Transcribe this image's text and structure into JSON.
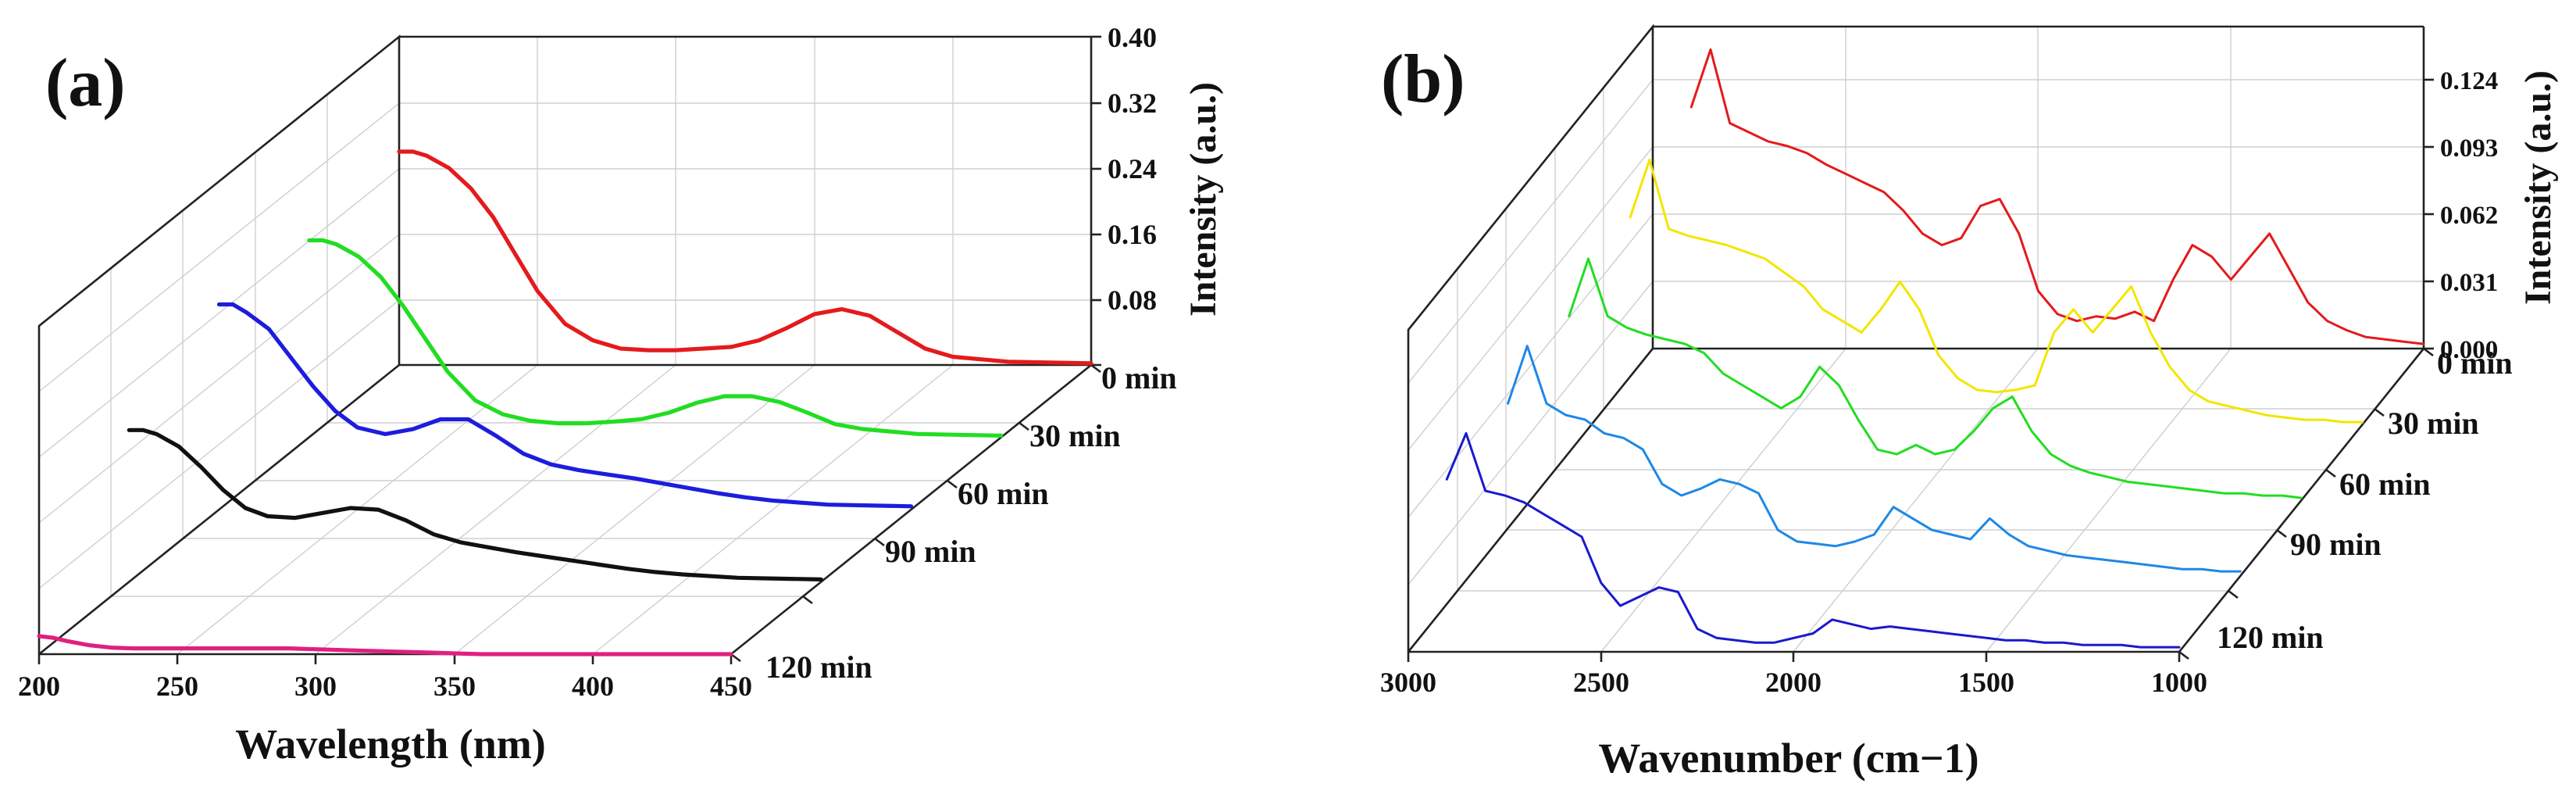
{
  "chart_data": [
    {
      "panel": "(a)",
      "type": "line",
      "subtype": "3d-waterfall",
      "title": "",
      "xlabel": "Wavelength (nm)",
      "ylabel": "Intensity (a.u.)",
      "xlim": [
        200,
        450
      ],
      "ylim": [
        0,
        0.4
      ],
      "x_ticks": [
        "200",
        "250",
        "300",
        "350",
        "400",
        "450"
      ],
      "y_ticks": [
        "0.40",
        "0.32",
        "0.24",
        "0.16",
        "0.08"
      ],
      "depth_labels": [
        "0 min",
        "30 min",
        "60 min",
        "90 min",
        "120 min"
      ],
      "series": [
        {
          "name": "0 min",
          "color": "#e41a1c",
          "x": [
            200,
            205,
            210,
            218,
            226,
            234,
            242,
            250,
            260,
            270,
            280,
            290,
            300,
            310,
            320,
            330,
            340,
            350,
            360,
            370,
            380,
            390,
            400,
            420,
            450
          ],
          "values": [
            0.26,
            0.26,
            0.255,
            0.24,
            0.215,
            0.18,
            0.135,
            0.09,
            0.05,
            0.03,
            0.02,
            0.018,
            0.018,
            0.02,
            0.022,
            0.03,
            0.045,
            0.062,
            0.068,
            0.06,
            0.04,
            0.02,
            0.01,
            0.004,
            0.002
          ]
        },
        {
          "name": "30 min",
          "color": "#22dd22",
          "x": [
            200,
            205,
            210,
            218,
            226,
            234,
            242,
            250,
            260,
            270,
            280,
            290,
            300,
            310,
            320,
            330,
            340,
            350,
            360,
            370,
            380,
            390,
            400,
            420,
            450
          ],
          "values": [
            0.24,
            0.24,
            0.235,
            0.22,
            0.195,
            0.16,
            0.12,
            0.08,
            0.045,
            0.028,
            0.02,
            0.017,
            0.017,
            0.019,
            0.022,
            0.03,
            0.042,
            0.05,
            0.05,
            0.043,
            0.03,
            0.016,
            0.01,
            0.004,
            0.002
          ]
        },
        {
          "name": "60 min",
          "color": "#1d1ddd",
          "x": [
            200,
            205,
            210,
            218,
            226,
            234,
            242,
            250,
            260,
            270,
            280,
            290,
            300,
            310,
            320,
            330,
            340,
            350,
            360,
            370,
            380,
            390,
            400,
            420,
            450
          ],
          "values": [
            0.25,
            0.25,
            0.24,
            0.22,
            0.185,
            0.15,
            0.12,
            0.1,
            0.092,
            0.098,
            0.11,
            0.11,
            0.09,
            0.068,
            0.055,
            0.048,
            0.043,
            0.038,
            0.032,
            0.026,
            0.02,
            0.015,
            0.011,
            0.006,
            0.004
          ]
        },
        {
          "name": "90 min",
          "color": "#111111",
          "x": [
            200,
            205,
            210,
            218,
            226,
            234,
            242,
            250,
            260,
            270,
            280,
            290,
            300,
            310,
            320,
            330,
            340,
            350,
            360,
            370,
            380,
            390,
            400,
            420,
            450
          ],
          "values": [
            0.185,
            0.185,
            0.18,
            0.165,
            0.14,
            0.112,
            0.09,
            0.08,
            0.078,
            0.084,
            0.09,
            0.088,
            0.075,
            0.058,
            0.048,
            0.042,
            0.036,
            0.031,
            0.026,
            0.021,
            0.016,
            0.012,
            0.009,
            0.005,
            0.003
          ]
        },
        {
          "name": "120 min",
          "color": "#e0207f",
          "x": [
            200,
            205,
            210,
            218,
            226,
            234,
            242,
            250,
            260,
            270,
            280,
            290,
            300,
            310,
            320,
            330,
            340,
            350,
            360,
            370,
            380,
            390,
            400,
            420,
            450
          ],
          "values": [
            0.022,
            0.02,
            0.016,
            0.011,
            0.008,
            0.007,
            0.007,
            0.007,
            0.007,
            0.007,
            0.007,
            0.007,
            0.006,
            0.005,
            0.004,
            0.003,
            0.002,
            0.001,
            0.0,
            0.0,
            0.0,
            0.0,
            0.0,
            0.0,
            0.0
          ]
        }
      ]
    },
    {
      "panel": "(b)",
      "type": "line",
      "subtype": "3d-waterfall",
      "title": "",
      "xlabel": "Wavenumber (cm−1)",
      "ylabel": "Intensity (a.u.)",
      "xlim": [
        3000,
        1000
      ],
      "ylim": [
        0,
        0.14
      ],
      "x_ticks": [
        "3000",
        "2500",
        "2000",
        "1500",
        "1000"
      ],
      "y_ticks": [
        "0.124",
        "0.093",
        "0.062",
        "0.031",
        "0.000"
      ],
      "depth_labels": [
        "0 min",
        "30 min",
        "60 min",
        "90 min",
        "120 min"
      ],
      "series": [
        {
          "name": "0 min",
          "color": "#e41a1c",
          "x": [
            2900,
            2850,
            2800,
            2750,
            2700,
            2650,
            2600,
            2550,
            2500,
            2450,
            2400,
            2350,
            2300,
            2250,
            2200,
            2150,
            2100,
            2050,
            2000,
            1950,
            1900,
            1850,
            1800,
            1750,
            1700,
            1650,
            1600,
            1550,
            1500,
            1450,
            1400,
            1350,
            1300,
            1250,
            1200,
            1150,
            1100,
            1050,
            1000
          ],
          "values": [
            0.105,
            0.13,
            0.098,
            0.094,
            0.09,
            0.088,
            0.085,
            0.08,
            0.076,
            0.072,
            0.068,
            0.06,
            0.05,
            0.045,
            0.048,
            0.062,
            0.065,
            0.05,
            0.025,
            0.015,
            0.012,
            0.014,
            0.013,
            0.016,
            0.012,
            0.03,
            0.045,
            0.04,
            0.03,
            0.04,
            0.05,
            0.035,
            0.02,
            0.012,
            0.008,
            0.005,
            0.004,
            0.003,
            0.002
          ]
        },
        {
          "name": "30 min",
          "color": "#f2e600",
          "x": [
            2900,
            2850,
            2800,
            2750,
            2700,
            2650,
            2600,
            2550,
            2500,
            2450,
            2400,
            2350,
            2300,
            2250,
            2200,
            2150,
            2100,
            2050,
            2000,
            1950,
            1900,
            1850,
            1800,
            1750,
            1700,
            1650,
            1600,
            1550,
            1500,
            1450,
            1400,
            1350,
            1300,
            1250,
            1200,
            1150,
            1100,
            1050,
            1000
          ],
          "values": [
            0.09,
            0.115,
            0.085,
            0.082,
            0.08,
            0.078,
            0.075,
            0.072,
            0.066,
            0.06,
            0.05,
            0.045,
            0.04,
            0.05,
            0.062,
            0.05,
            0.03,
            0.02,
            0.015,
            0.014,
            0.015,
            0.017,
            0.04,
            0.05,
            0.04,
            0.05,
            0.06,
            0.04,
            0.025,
            0.015,
            0.01,
            0.008,
            0.006,
            0.004,
            0.003,
            0.002,
            0.002,
            0.001,
            0.001
          ]
        },
        {
          "name": "60 min",
          "color": "#22dd22",
          "x": [
            2900,
            2850,
            2800,
            2750,
            2700,
            2650,
            2600,
            2550,
            2500,
            2450,
            2400,
            2350,
            2300,
            2250,
            2200,
            2150,
            2100,
            2050,
            2000,
            1950,
            1900,
            1850,
            1800,
            1750,
            1700,
            1650,
            1600,
            1550,
            1500,
            1450,
            1400,
            1350,
            1300,
            1250,
            1200,
            1150,
            1100,
            1050,
            1000
          ],
          "values": [
            0.08,
            0.105,
            0.08,
            0.075,
            0.072,
            0.07,
            0.068,
            0.064,
            0.055,
            0.05,
            0.045,
            0.04,
            0.045,
            0.058,
            0.05,
            0.035,
            0.022,
            0.02,
            0.024,
            0.02,
            0.022,
            0.03,
            0.04,
            0.045,
            0.03,
            0.02,
            0.015,
            0.012,
            0.01,
            0.008,
            0.007,
            0.006,
            0.005,
            0.004,
            0.003,
            0.003,
            0.002,
            0.002,
            0.001
          ]
        },
        {
          "name": "90 min",
          "color": "#1e88e5",
          "x": [
            2900,
            2850,
            2800,
            2750,
            2700,
            2650,
            2600,
            2550,
            2500,
            2450,
            2400,
            2350,
            2300,
            2250,
            2200,
            2150,
            2100,
            2050,
            2000,
            1950,
            1900,
            1850,
            1800,
            1750,
            1700,
            1650,
            1600,
            1550,
            1500,
            1450,
            1400,
            1350,
            1300,
            1250,
            1200,
            1150,
            1100,
            1050,
            1000
          ],
          "values": [
            0.075,
            0.1,
            0.075,
            0.07,
            0.068,
            0.062,
            0.06,
            0.055,
            0.04,
            0.035,
            0.038,
            0.042,
            0.04,
            0.036,
            0.02,
            0.015,
            0.014,
            0.013,
            0.015,
            0.018,
            0.03,
            0.025,
            0.02,
            0.018,
            0.016,
            0.025,
            0.018,
            0.013,
            0.011,
            0.009,
            0.008,
            0.007,
            0.006,
            0.005,
            0.004,
            0.003,
            0.003,
            0.002,
            0.002
          ]
        },
        {
          "name": "120 min",
          "color": "#1a1acc",
          "x": [
            2900,
            2850,
            2800,
            2750,
            2700,
            2650,
            2600,
            2550,
            2500,
            2450,
            2400,
            2350,
            2300,
            2250,
            2200,
            2150,
            2100,
            2050,
            2000,
            1950,
            1900,
            1850,
            1800,
            1750,
            1700,
            1650,
            1600,
            1550,
            1500,
            1450,
            1400,
            1350,
            1300,
            1250,
            1200,
            1150,
            1100,
            1050,
            1000
          ],
          "values": [
            0.075,
            0.095,
            0.07,
            0.068,
            0.065,
            0.06,
            0.055,
            0.05,
            0.03,
            0.02,
            0.024,
            0.028,
            0.026,
            0.01,
            0.006,
            0.005,
            0.004,
            0.004,
            0.006,
            0.008,
            0.014,
            0.012,
            0.01,
            0.011,
            0.01,
            0.009,
            0.008,
            0.007,
            0.006,
            0.005,
            0.005,
            0.004,
            0.004,
            0.003,
            0.003,
            0.003,
            0.002,
            0.002,
            0.002
          ]
        }
      ]
    }
  ]
}
